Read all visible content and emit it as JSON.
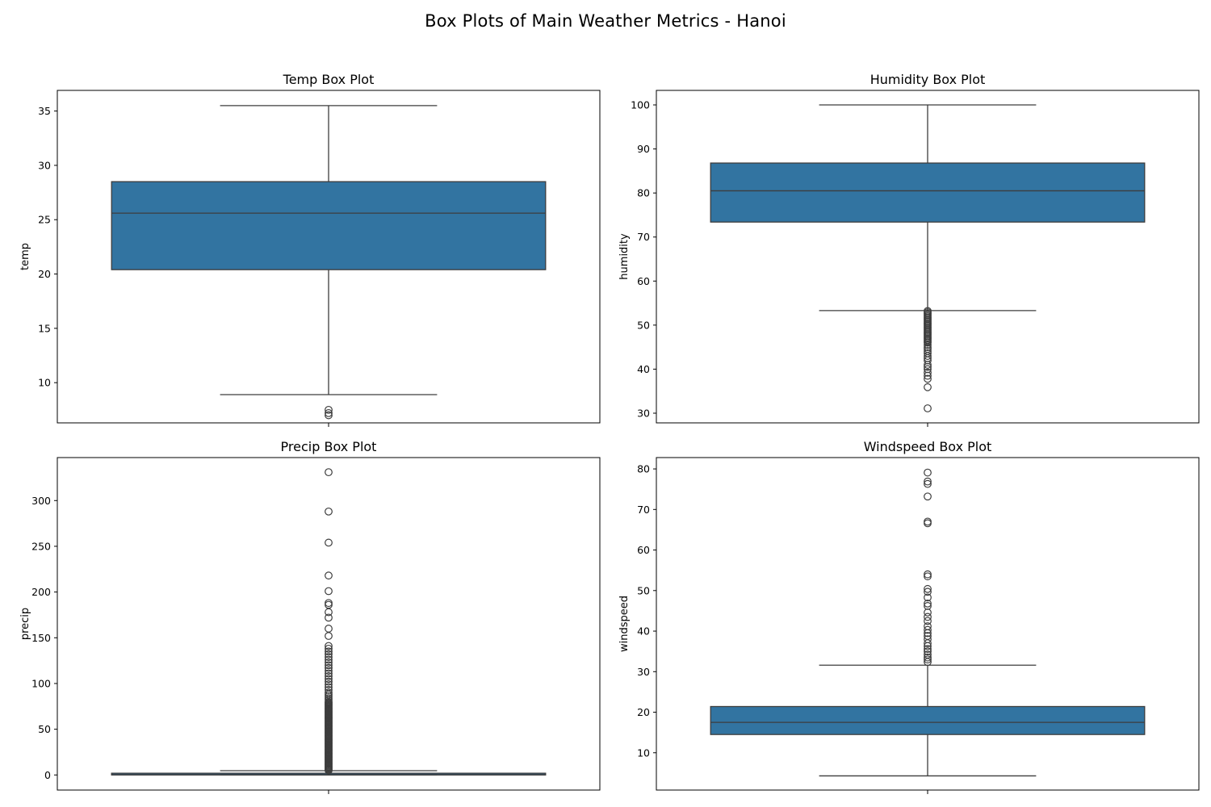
{
  "figure": {
    "title": "Box Plots of Main Weather Metrics - Hanoi"
  },
  "colors": {
    "box_fill": "#3274a1",
    "line": "#3d3d3d",
    "axis": "#000000"
  },
  "chart_data": [
    {
      "type": "box",
      "title": "Temp Box Plot",
      "ylabel": "temp",
      "xlabel": "",
      "ylim": [
        6.3,
        36.9
      ],
      "yticks": [
        10,
        15,
        20,
        25,
        30,
        35
      ],
      "box": {
        "whisker_low": 8.9,
        "q1": 20.4,
        "median": 25.6,
        "q3": 28.5,
        "whisker_high": 35.5
      },
      "outliers": [
        7.0,
        7.2,
        7.5
      ]
    },
    {
      "type": "box",
      "title": "Humidity Box Plot",
      "ylabel": "humidity",
      "xlabel": "",
      "ylim": [
        27.8,
        103.3
      ],
      "yticks": [
        30,
        40,
        50,
        60,
        70,
        80,
        90,
        100
      ],
      "box": {
        "whisker_low": 53.3,
        "q1": 73.4,
        "median": 80.5,
        "q3": 86.8,
        "whisker_high": 100
      },
      "outliers": [
        53.2,
        52.9,
        52.6,
        52.3,
        52.0,
        51.7,
        51.4,
        51.1,
        50.8,
        50.5,
        50.2,
        49.9,
        49.6,
        49.3,
        49.0,
        48.7,
        48.4,
        48.1,
        47.8,
        47.5,
        47.2,
        46.9,
        46.6,
        46.3,
        46.0,
        45.5,
        45.0,
        44.6,
        44.1,
        43.6,
        43.0,
        42.5,
        42.0,
        41.0,
        40.5,
        40.0,
        39.2,
        38.5,
        37.8,
        35.9,
        31.1
      ]
    },
    {
      "type": "box",
      "title": "Precip Box Plot",
      "ylabel": "precip",
      "xlabel": "",
      "ylim": [
        -16.5,
        347.0
      ],
      "yticks": [
        0,
        50,
        100,
        150,
        200,
        250,
        300
      ],
      "box": {
        "whisker_low": 0,
        "q1": 0,
        "median": 0.3,
        "q3": 1.9,
        "whisker_high": 4.7
      },
      "outliers": [
        5,
        6,
        7,
        8,
        9,
        10,
        11,
        12,
        13,
        14,
        15,
        16,
        17,
        18,
        19,
        20,
        21,
        22,
        23,
        24,
        25,
        26,
        27,
        28,
        29,
        30,
        31,
        32,
        33,
        34,
        35,
        36,
        37,
        38,
        39,
        40,
        41,
        42,
        43,
        44,
        45,
        46,
        47,
        48,
        49,
        50,
        51,
        52,
        53,
        54,
        55,
        56,
        57,
        58,
        59,
        60,
        61,
        62,
        63,
        64,
        65,
        66,
        67,
        68,
        69,
        70,
        71,
        72,
        73,
        74,
        75,
        76,
        77,
        78,
        79,
        80,
        82,
        84,
        86,
        88,
        90,
        93,
        96,
        99,
        102,
        105,
        108,
        111,
        114,
        117,
        120,
        123,
        126,
        129,
        132,
        135,
        138,
        141,
        152,
        160,
        172,
        178,
        186,
        188,
        201,
        218,
        254,
        288,
        331
      ]
    },
    {
      "type": "box",
      "title": "Windspeed Box Plot",
      "ylabel": "windspeed",
      "xlabel": "",
      "ylim": [
        0.8,
        82.8
      ],
      "yticks": [
        10,
        20,
        30,
        40,
        50,
        60,
        70,
        80
      ],
      "box": {
        "whisker_low": 4.3,
        "q1": 14.5,
        "median": 17.5,
        "q3": 21.4,
        "whisker_high": 31.6
      },
      "outliers": [
        32.4,
        33.0,
        33.5,
        34.2,
        35.0,
        35.6,
        36.3,
        37.0,
        38.0,
        38.8,
        39.5,
        40.3,
        41.2,
        42.5,
        43.5,
        44.6,
        46.2,
        46.8,
        48.3,
        49.7,
        50.4,
        53.5,
        54.0,
        66.6,
        67.0,
        73.2,
        76.3,
        76.9,
        79.1
      ]
    }
  ]
}
